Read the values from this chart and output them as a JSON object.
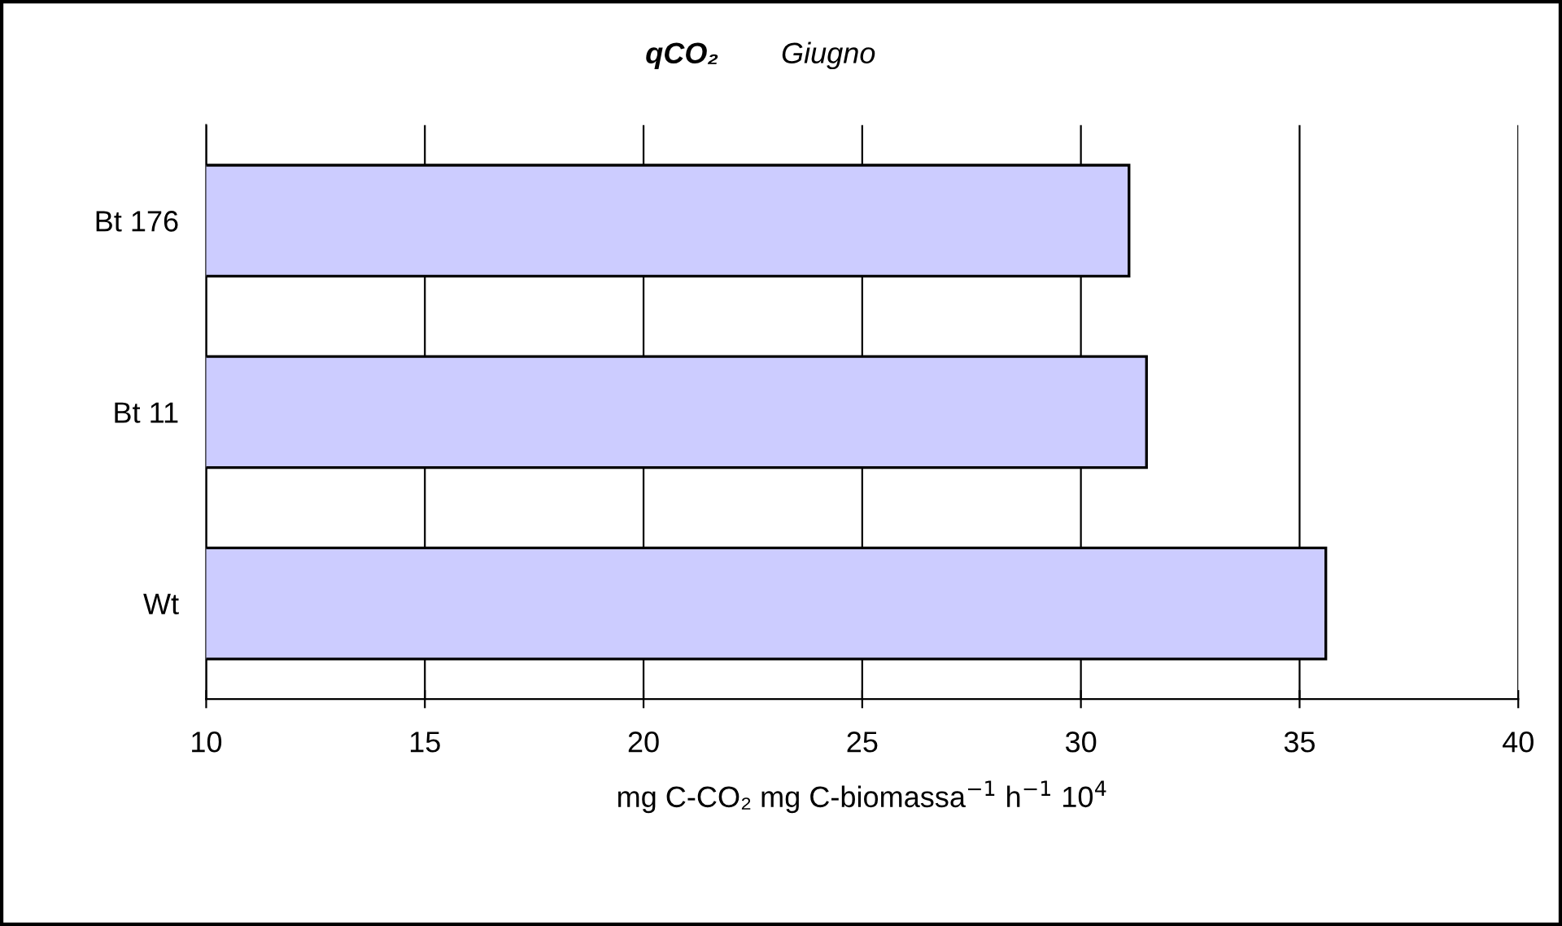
{
  "chart_data": {
    "type": "bar",
    "orientation": "horizontal",
    "title": "qCO₂",
    "subtitle": "Giugno",
    "categories": [
      "Bt 176",
      "Bt 11",
      "Wt"
    ],
    "values": [
      31.1,
      31.5,
      35.6
    ],
    "color": "#ccccff",
    "xlabel": "mg C-CO₂ mg C-biomassa$^{−1}$ h$^{−1}$ 10$^{4}$",
    "xlim": [
      10,
      40
    ],
    "xticks": [
      10,
      15,
      20,
      25,
      30,
      35,
      40
    ],
    "grid": "x",
    "legend": false
  }
}
